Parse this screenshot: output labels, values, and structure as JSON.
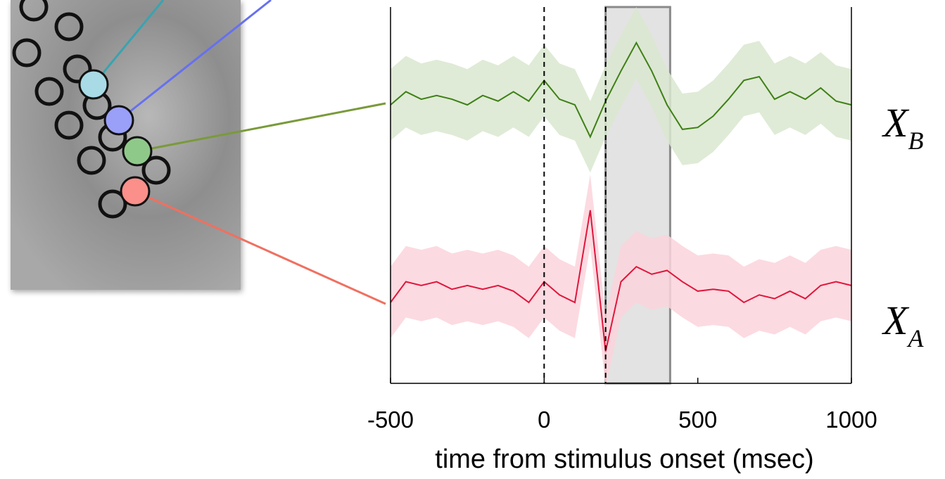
{
  "chart_data": {
    "type": "line",
    "xlabel": "time from stimulus onset (msec)",
    "x": [
      -500,
      -450,
      -400,
      -350,
      -300,
      -250,
      -200,
      -150,
      -100,
      -50,
      0,
      50,
      100,
      150,
      200,
      250,
      300,
      350,
      400,
      450,
      500,
      550,
      600,
      650,
      700,
      750,
      800,
      850,
      900,
      950,
      1000
    ],
    "xlim": [
      -500,
      1000
    ],
    "xticks": [
      -500,
      0,
      500,
      1000
    ],
    "ylim": [
      0,
      2
    ],
    "vlines": [
      0,
      200
    ],
    "shaded_region": [
      200,
      410
    ],
    "series": [
      {
        "name": "X",
        "name_sub": "B",
        "color": "#3f7f16",
        "band_color": "#d9e8cf",
        "values": [
          1.48,
          1.55,
          1.51,
          1.53,
          1.51,
          1.48,
          1.53,
          1.5,
          1.55,
          1.5,
          1.61,
          1.51,
          1.48,
          1.31,
          1.5,
          1.66,
          1.81,
          1.66,
          1.48,
          1.35,
          1.36,
          1.42,
          1.51,
          1.61,
          1.63,
          1.51,
          1.55,
          1.51,
          1.57,
          1.5,
          1.48
        ],
        "errors": [
          0.19,
          0.19,
          0.19,
          0.19,
          0.19,
          0.19,
          0.19,
          0.19,
          0.19,
          0.19,
          0.19,
          0.19,
          0.19,
          0.19,
          0.19,
          0.19,
          0.19,
          0.19,
          0.19,
          0.19,
          0.19,
          0.19,
          0.19,
          0.19,
          0.19,
          0.19,
          0.19,
          0.19,
          0.19,
          0.19,
          0.19
        ]
      },
      {
        "name": "X",
        "name_sub": "A",
        "color": "#e0163c",
        "band_color": "#fbd3dc",
        "values": [
          0.43,
          0.54,
          0.52,
          0.54,
          0.5,
          0.52,
          0.5,
          0.52,
          0.49,
          0.43,
          0.54,
          0.47,
          0.43,
          0.92,
          0.17,
          0.54,
          0.62,
          0.58,
          0.6,
          0.54,
          0.49,
          0.5,
          0.49,
          0.43,
          0.47,
          0.45,
          0.49,
          0.45,
          0.52,
          0.54,
          0.52
        ],
        "errors": [
          0.19,
          0.19,
          0.19,
          0.19,
          0.19,
          0.19,
          0.19,
          0.19,
          0.19,
          0.19,
          0.19,
          0.19,
          0.19,
          0.19,
          0.19,
          0.19,
          0.19,
          0.19,
          0.19,
          0.19,
          0.19,
          0.19,
          0.19,
          0.19,
          0.19,
          0.19,
          0.19,
          0.19,
          0.19,
          0.19,
          0.19
        ]
      }
    ]
  }
}
